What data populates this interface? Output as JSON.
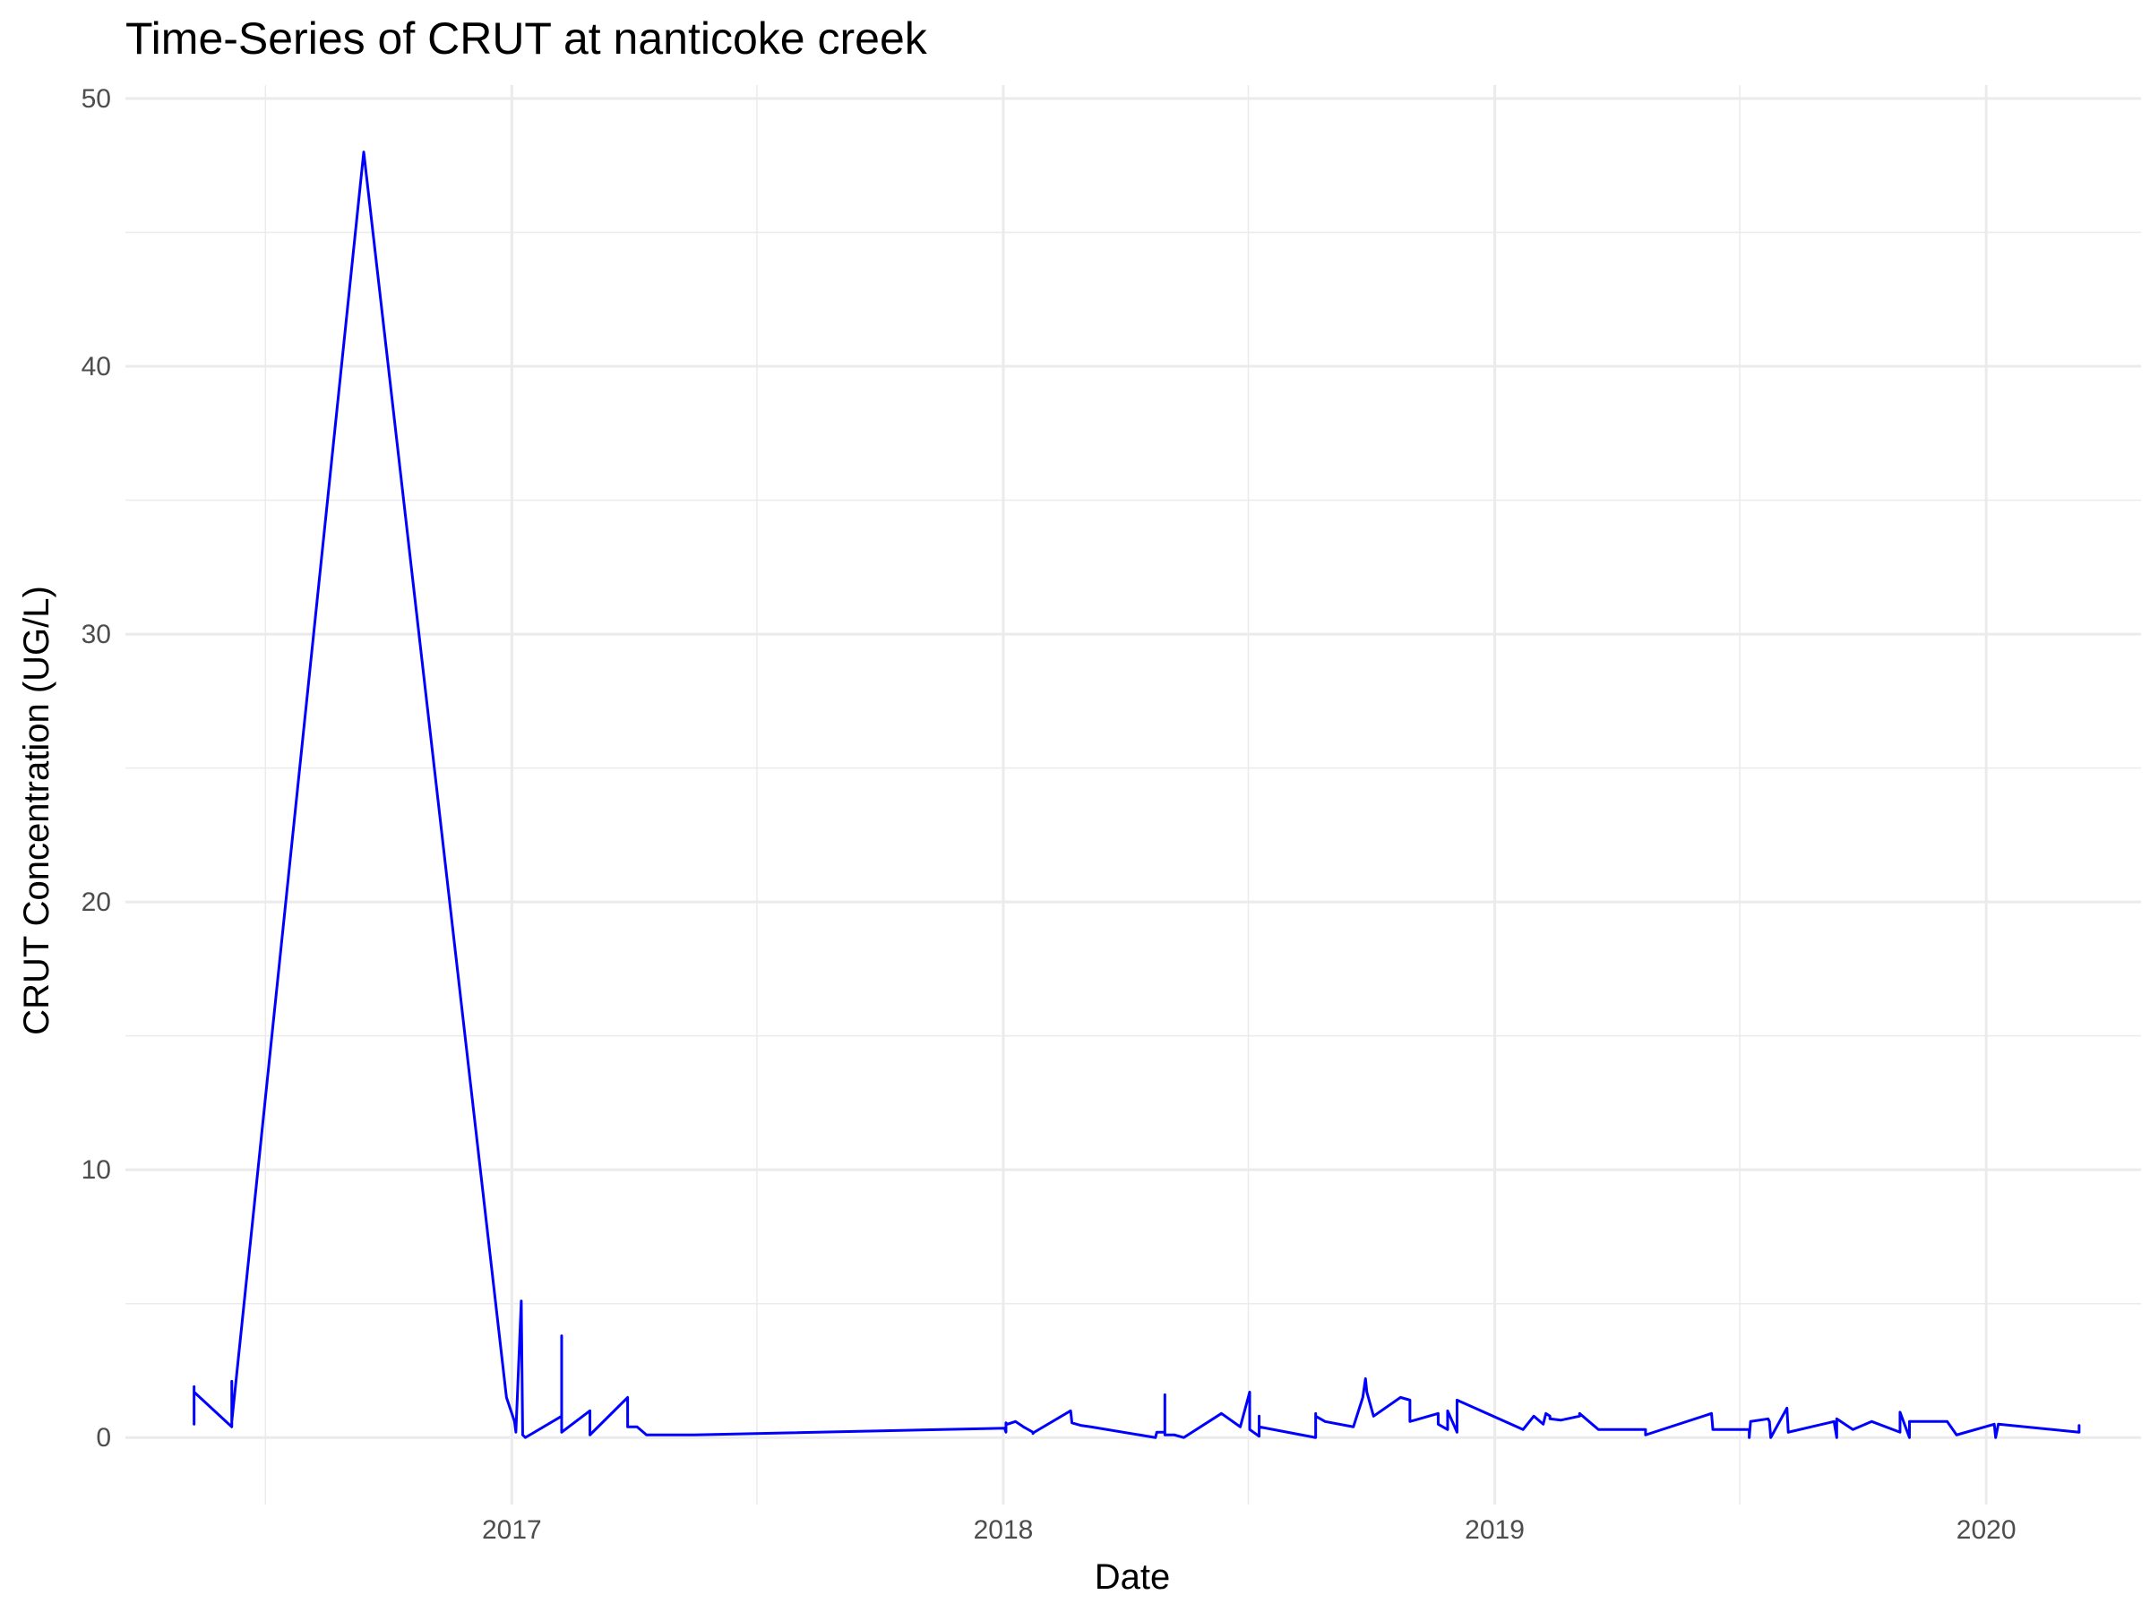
{
  "chart_data": {
    "type": "line",
    "title": "Time-Series of CRUT at nanticoke creek",
    "xlabel": "Date",
    "ylabel": "CRUT Concentration (UG/L)",
    "xlim": [
      "2016-03-20",
      "2020-04-25"
    ],
    "ylim": [
      -2.5,
      50.5
    ],
    "x_ticks": [
      {
        "date": "2017-01-01",
        "label": "2017"
      },
      {
        "date": "2018-01-01",
        "label": "2018"
      },
      {
        "date": "2019-01-01",
        "label": "2019"
      },
      {
        "date": "2020-01-01",
        "label": "2020"
      }
    ],
    "x_minor_ticks": [
      "2016-07-02",
      "2017-07-02",
      "2018-07-02",
      "2019-07-02"
    ],
    "y_ticks": [
      0,
      10,
      20,
      30,
      40,
      50
    ],
    "y_minor_ticks": [
      5,
      15,
      25,
      35,
      45
    ],
    "grid": true,
    "legend": "none",
    "line_color": "#0000ff",
    "series": [
      {
        "x": [
          "2016-05-10",
          "2016-05-10",
          "2016-05-10",
          "2016-06-07",
          "2016-06-07",
          "2016-06-07",
          "2016-09-13",
          "2016-12-28",
          "2017-01-03",
          "2017-01-04",
          "2017-01-08",
          "2017-01-09",
          "2017-01-09",
          "2017-01-11",
          "2017-02-07",
          "2017-02-07",
          "2017-02-07",
          "2017-02-28",
          "2017-02-28",
          "2017-03-28",
          "2017-03-28",
          "2017-04-04",
          "2017-04-11",
          "2017-05-16",
          "2018-01-02",
          "2018-01-03",
          "2018-01-03",
          "2018-01-04",
          "2018-01-10",
          "2018-01-16",
          "2018-01-23",
          "2018-01-23",
          "2018-01-24",
          "2018-02-20",
          "2018-02-21",
          "2018-02-28",
          "2018-03-07",
          "2018-04-24",
          "2018-04-25",
          "2018-05-01",
          "2018-05-01",
          "2018-05-01",
          "2018-05-08",
          "2018-05-15",
          "2018-06-12",
          "2018-06-26",
          "2018-07-03",
          "2018-07-03",
          "2018-07-10",
          "2018-07-10",
          "2018-07-10",
          "2018-08-21",
          "2018-08-21",
          "2018-08-21",
          "2018-08-28",
          "2018-09-18",
          "2018-09-25",
          "2018-09-27",
          "2018-09-28",
          "2018-10-03",
          "2018-10-23",
          "2018-10-30",
          "2018-10-30",
          "2018-11-20",
          "2018-11-20",
          "2018-11-27",
          "2018-11-27",
          "2018-12-04",
          "2018-12-04",
          "2019-01-22",
          "2019-01-30",
          "2019-02-06",
          "2019-02-08",
          "2019-02-11",
          "2019-02-11",
          "2019-02-19",
          "2019-03-05",
          "2019-03-05",
          "2019-03-19",
          "2019-03-21",
          "2019-04-23",
          "2019-04-23",
          "2019-06-11",
          "2019-06-12",
          "2019-07-09",
          "2019-07-09",
          "2019-07-10",
          "2019-07-23",
          "2019-07-24",
          "2019-07-25",
          "2019-08-06",
          "2019-08-07",
          "2019-09-10",
          "2019-09-12",
          "2019-09-12",
          "2019-09-24",
          "2019-09-24",
          "2019-10-08",
          "2019-10-29",
          "2019-10-29",
          "2019-11-05",
          "2019-11-05",
          "2019-12-03",
          "2019-12-10",
          "2020-01-07",
          "2020-01-08",
          "2020-01-10",
          "2020-03-10",
          "2020-03-10"
        ],
        "y": [
          0.5,
          1.9,
          1.7,
          0.4,
          2.1,
          0.6,
          48.0,
          1.5,
          0.6,
          0.2,
          5.1,
          0.3,
          0.1,
          0.0,
          0.8,
          3.8,
          0.2,
          1.0,
          0.1,
          1.5,
          0.4,
          0.4,
          0.1,
          0.1,
          0.35,
          0.2,
          0.55,
          0.5,
          0.6,
          0.4,
          0.2,
          0.15,
          0.2,
          1.0,
          0.55,
          0.45,
          0.4,
          0.0,
          0.2,
          0.2,
          1.6,
          0.1,
          0.1,
          0.0,
          0.9,
          0.4,
          1.7,
          0.3,
          0.05,
          0.8,
          0.4,
          0.0,
          0.9,
          0.8,
          0.6,
          0.4,
          1.5,
          2.2,
          1.7,
          0.8,
          1.5,
          1.4,
          0.6,
          0.9,
          0.5,
          0.3,
          1.0,
          0.2,
          1.4,
          0.3,
          0.8,
          0.5,
          0.9,
          0.8,
          0.7,
          0.65,
          0.8,
          0.9,
          0.3,
          0.3,
          0.3,
          0.1,
          0.9,
          0.3,
          0.3,
          0.0,
          0.6,
          0.7,
          0.6,
          0.0,
          1.1,
          0.2,
          0.6,
          0.0,
          0.7,
          0.3,
          0.3,
          0.6,
          0.2,
          0.95,
          0.0,
          0.6,
          0.6,
          0.1,
          0.5,
          0.0,
          0.5,
          0.2,
          0.45
        ]
      }
    ]
  }
}
